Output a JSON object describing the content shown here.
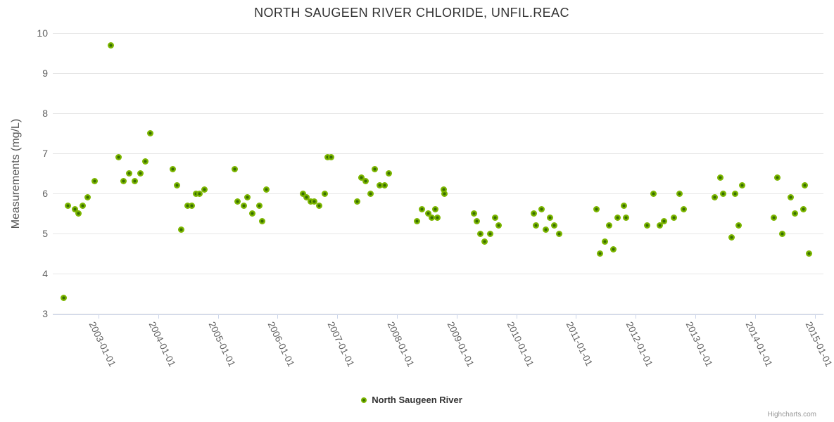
{
  "title": "NORTH SAUGEEN RIVER CHLORIDE, UNFIL.REAC",
  "credits": "Highcharts.com",
  "legend": {
    "label": "North Saugeen River"
  },
  "colors": {
    "marker_fill": "#7cb600",
    "marker_center": "#376d00",
    "gridline": "#e6e6e6",
    "axis_line": "#ccd6eb",
    "title_text": "#333333",
    "axis_label_text": "#606060",
    "credits_text": "#999999"
  },
  "chart_data": {
    "type": "scatter",
    "title": "NORTH SAUGEEN RIVER CHLORIDE, UNFIL.REAC",
    "xlabel": "",
    "ylabel": "Measurements (mg/L)",
    "ylim": [
      3,
      10
    ],
    "y_ticks": [
      3,
      4,
      5,
      6,
      7,
      8,
      9,
      10
    ],
    "xlim": [
      2002.234,
      2015.147
    ],
    "x_ticks": [
      2003,
      2004,
      2005,
      2006,
      2007,
      2008,
      2009,
      2010,
      2011,
      2012,
      2013,
      2014,
      2015
    ],
    "x_tick_labels": [
      "2003-01-01",
      "2004-01-01",
      "2005-01-01",
      "2006-01-01",
      "2007-01-01",
      "2008-01-01",
      "2009-01-01",
      "2010-01-01",
      "2011-01-01",
      "2012-01-01",
      "2013-01-01",
      "2014-01-01",
      "2015-01-01"
    ],
    "grid": "horizontal-only",
    "legend_position": "bottom-center",
    "series": [
      {
        "name": "North Saugeen River",
        "color": "#7cb600",
        "points": [
          [
            2002.42,
            3.4
          ],
          [
            2002.49,
            5.7
          ],
          [
            2002.6,
            5.6
          ],
          [
            2002.67,
            5.5
          ],
          [
            2002.74,
            5.7
          ],
          [
            2002.82,
            5.9
          ],
          [
            2002.93,
            6.3
          ],
          [
            2003.21,
            9.7
          ],
          [
            2003.34,
            6.9
          ],
          [
            2003.42,
            6.3
          ],
          [
            2003.51,
            6.5
          ],
          [
            2003.61,
            6.3
          ],
          [
            2003.7,
            6.5
          ],
          [
            2003.78,
            6.8
          ],
          [
            2003.87,
            7.5
          ],
          [
            2004.24,
            6.6
          ],
          [
            2004.32,
            6.2
          ],
          [
            2004.39,
            5.1
          ],
          [
            2004.49,
            5.7
          ],
          [
            2004.56,
            5.7
          ],
          [
            2004.63,
            6.0
          ],
          [
            2004.69,
            6.0
          ],
          [
            2004.77,
            6.1
          ],
          [
            2005.28,
            6.6
          ],
          [
            2005.33,
            5.8
          ],
          [
            2005.43,
            5.7
          ],
          [
            2005.5,
            5.9
          ],
          [
            2005.58,
            5.5
          ],
          [
            2005.69,
            5.7
          ],
          [
            2005.74,
            5.3
          ],
          [
            2005.81,
            6.1
          ],
          [
            2006.43,
            6.0
          ],
          [
            2006.49,
            5.9
          ],
          [
            2006.56,
            5.8
          ],
          [
            2006.62,
            5.8
          ],
          [
            2006.7,
            5.7
          ],
          [
            2006.79,
            6.0
          ],
          [
            2006.84,
            6.9
          ],
          [
            2006.9,
            6.9
          ],
          [
            2007.34,
            5.8
          ],
          [
            2007.4,
            6.4
          ],
          [
            2007.48,
            6.3
          ],
          [
            2007.56,
            6.0
          ],
          [
            2007.63,
            6.6
          ],
          [
            2007.71,
            6.2
          ],
          [
            2007.79,
            6.2
          ],
          [
            2007.86,
            6.5
          ],
          [
            2008.34,
            5.3
          ],
          [
            2008.42,
            5.6
          ],
          [
            2008.52,
            5.5
          ],
          [
            2008.58,
            5.4
          ],
          [
            2008.64,
            5.6
          ],
          [
            2008.68,
            5.4
          ],
          [
            2008.78,
            6.1
          ],
          [
            2008.8,
            6.0
          ],
          [
            2009.29,
            5.5
          ],
          [
            2009.34,
            5.3
          ],
          [
            2009.4,
            5.0
          ],
          [
            2009.47,
            4.8
          ],
          [
            2009.56,
            5.0
          ],
          [
            2009.64,
            5.4
          ],
          [
            2009.71,
            5.2
          ],
          [
            2010.29,
            5.5
          ],
          [
            2010.33,
            5.2
          ],
          [
            2010.42,
            5.6
          ],
          [
            2010.49,
            5.1
          ],
          [
            2010.57,
            5.4
          ],
          [
            2010.64,
            5.2
          ],
          [
            2010.72,
            5.0
          ],
          [
            2011.34,
            5.6
          ],
          [
            2011.4,
            4.5
          ],
          [
            2011.48,
            4.8
          ],
          [
            2011.56,
            5.2
          ],
          [
            2011.63,
            4.6
          ],
          [
            2011.7,
            5.4
          ],
          [
            2011.8,
            5.7
          ],
          [
            2011.84,
            5.4
          ],
          [
            2012.19,
            5.2
          ],
          [
            2012.3,
            6.0
          ],
          [
            2012.41,
            5.2
          ],
          [
            2012.48,
            5.3
          ],
          [
            2012.64,
            5.4
          ],
          [
            2012.73,
            6.0
          ],
          [
            2012.81,
            5.6
          ],
          [
            2013.32,
            5.9
          ],
          [
            2013.42,
            6.4
          ],
          [
            2013.47,
            6.0
          ],
          [
            2013.61,
            4.9
          ],
          [
            2013.67,
            6.0
          ],
          [
            2013.73,
            5.2
          ],
          [
            2013.79,
            6.2
          ],
          [
            2014.31,
            5.4
          ],
          [
            2014.38,
            6.4
          ],
          [
            2014.46,
            5.0
          ],
          [
            2014.6,
            5.9
          ],
          [
            2014.67,
            5.5
          ],
          [
            2014.81,
            5.6
          ],
          [
            2014.83,
            6.2
          ],
          [
            2014.9,
            4.5
          ]
        ]
      }
    ]
  }
}
